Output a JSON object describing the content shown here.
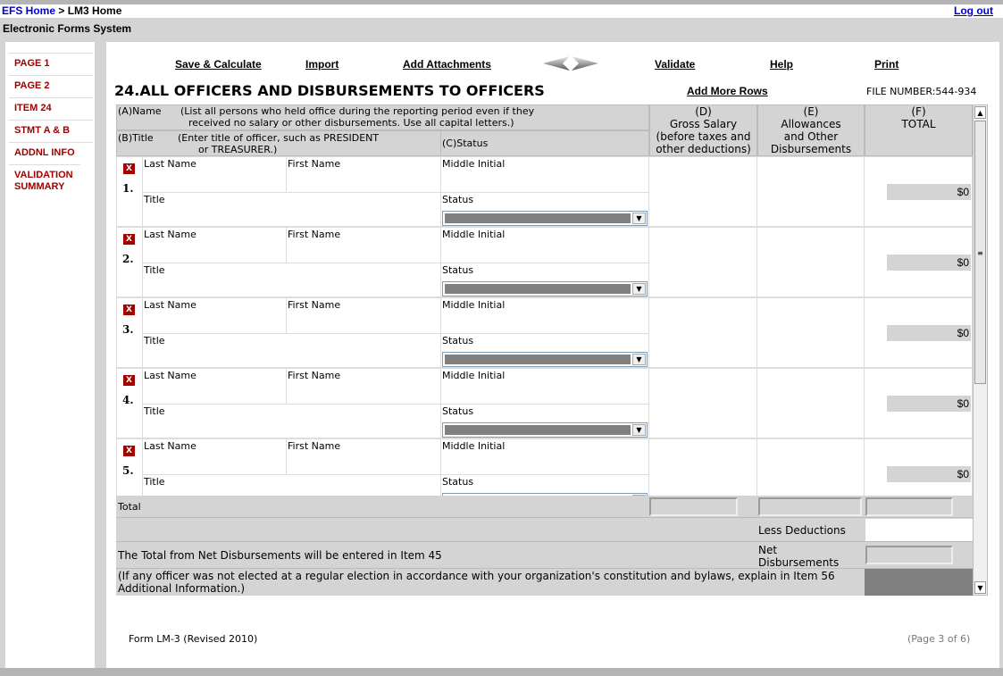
{
  "breadcrumb": {
    "home": "EFS Home",
    "sep": " > ",
    "current": "LM3 Home"
  },
  "logout": "Log out",
  "app_name": "Electronic Forms System",
  "sidebar": {
    "items": [
      {
        "label": "PAGE 1"
      },
      {
        "label": "PAGE 2"
      },
      {
        "label": "ITEM 24"
      },
      {
        "label": "STMT A & B"
      },
      {
        "label": "ADDNL INFO"
      },
      {
        "label": "VALIDATION SUMMARY"
      }
    ]
  },
  "toolbar": {
    "save": "Save & Calculate",
    "import": "Import",
    "attachments": "Add Attachments",
    "validate": "Validate",
    "help": "Help",
    "print": "Print",
    "prev_icon": "arrow-left-icon",
    "next_icon": "arrow-right-icon"
  },
  "title": "24.ALL OFFICERS AND DISBURSEMENTS TO OFFICERS",
  "add_rows": "Add More Rows",
  "file_number": "FILE NUMBER:544-934",
  "headers": {
    "a_name": "(A)Name",
    "a_note1": "(List all persons who held office during the reporting period even if they",
    "a_note2": "received no salary or other disbursements. Use all capital letters.)",
    "b_title": "(B)Title",
    "b_note1": "(Enter title of officer, such as PRESIDENT",
    "b_note2": "or TREASURER.)",
    "c_status": "(C)Status",
    "d": [
      "(D)",
      "Gross Salary",
      "(before taxes and",
      "other deductions)"
    ],
    "e": [
      "(E)",
      "Allowances",
      "and Other",
      "Disbursements"
    ],
    "f": [
      "(F)",
      "TOTAL"
    ]
  },
  "row_labels": {
    "last": "Last Name",
    "first": "First Name",
    "middle": "Middle Initial",
    "title": "Title",
    "status": "Status",
    "delete": "X"
  },
  "rows": [
    {
      "num": "1.",
      "total": "$0"
    },
    {
      "num": "2.",
      "total": "$0"
    },
    {
      "num": "3.",
      "total": "$0"
    },
    {
      "num": "4.",
      "total": "$0"
    },
    {
      "num": "5.",
      "total": "$0"
    }
  ],
  "footer_rows": {
    "total": "Total",
    "less_deductions": "Less Deductions",
    "net_note": "The Total from Net Disbursements will be entered in Item 45",
    "net": "Net Disbursements",
    "officer_note": "(If any officer was not elected at a regular election in accordance with your organization's constitution and bylaws, explain in Item 56 Additional Information.)"
  },
  "page_footer": {
    "form": "Form LM-3 (Revised 2010)",
    "page": "(Page 3 of 6)"
  }
}
